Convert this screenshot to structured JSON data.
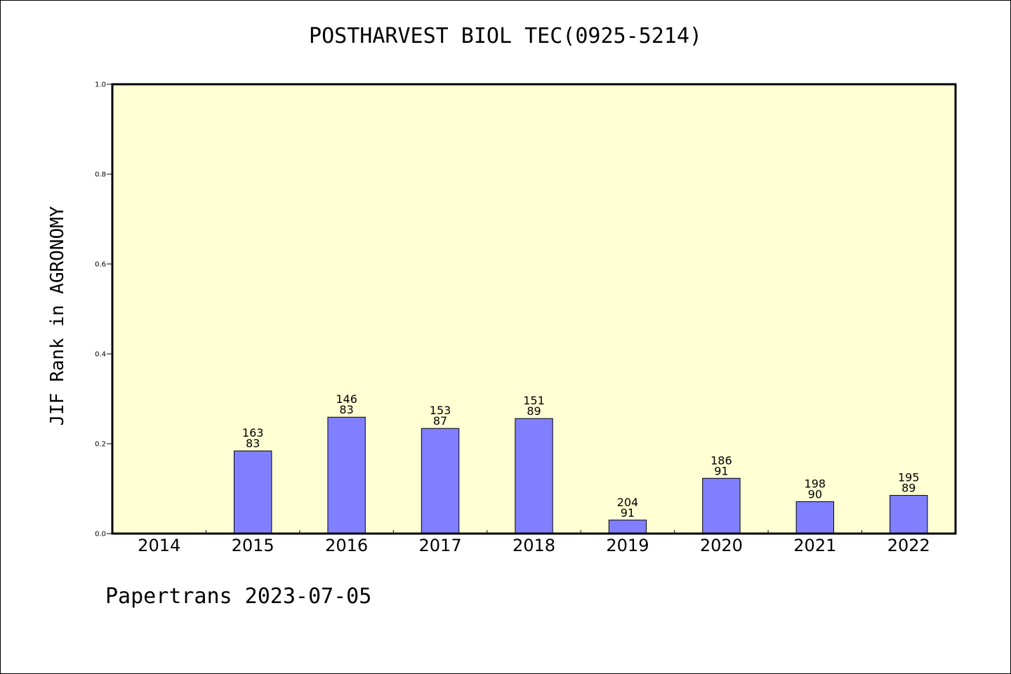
{
  "chart_data": {
    "type": "bar",
    "title": "POSTHARVEST BIOL TEC(0925-5214)",
    "ylabel": "JIF Rank in AGRONOMY",
    "xlabel": "",
    "ylim": [
      0,
      1.0
    ],
    "yticks": [
      "0.0",
      "0.2",
      "0.4",
      "0.6",
      "0.8",
      "1.0"
    ],
    "categories": [
      "2014",
      "2015",
      "2016",
      "2017",
      "2018",
      "2019",
      "2020",
      "2021",
      "2022"
    ],
    "values": [
      null,
      0.184,
      0.259,
      0.234,
      0.256,
      0.03,
      0.123,
      0.071,
      0.085
    ],
    "label_top": [
      "",
      "163",
      "146",
      "153",
      "151",
      "204",
      "186",
      "198",
      "195"
    ],
    "label_bottom": [
      "",
      "83",
      "83",
      "87",
      "89",
      "91",
      "91",
      "90",
      "89"
    ],
    "colors": {
      "plot_bg": "#ffffd4",
      "bar_fill": "#8080ff",
      "axis": "#000000"
    }
  },
  "footer": "Papertrans 2023-07-05"
}
